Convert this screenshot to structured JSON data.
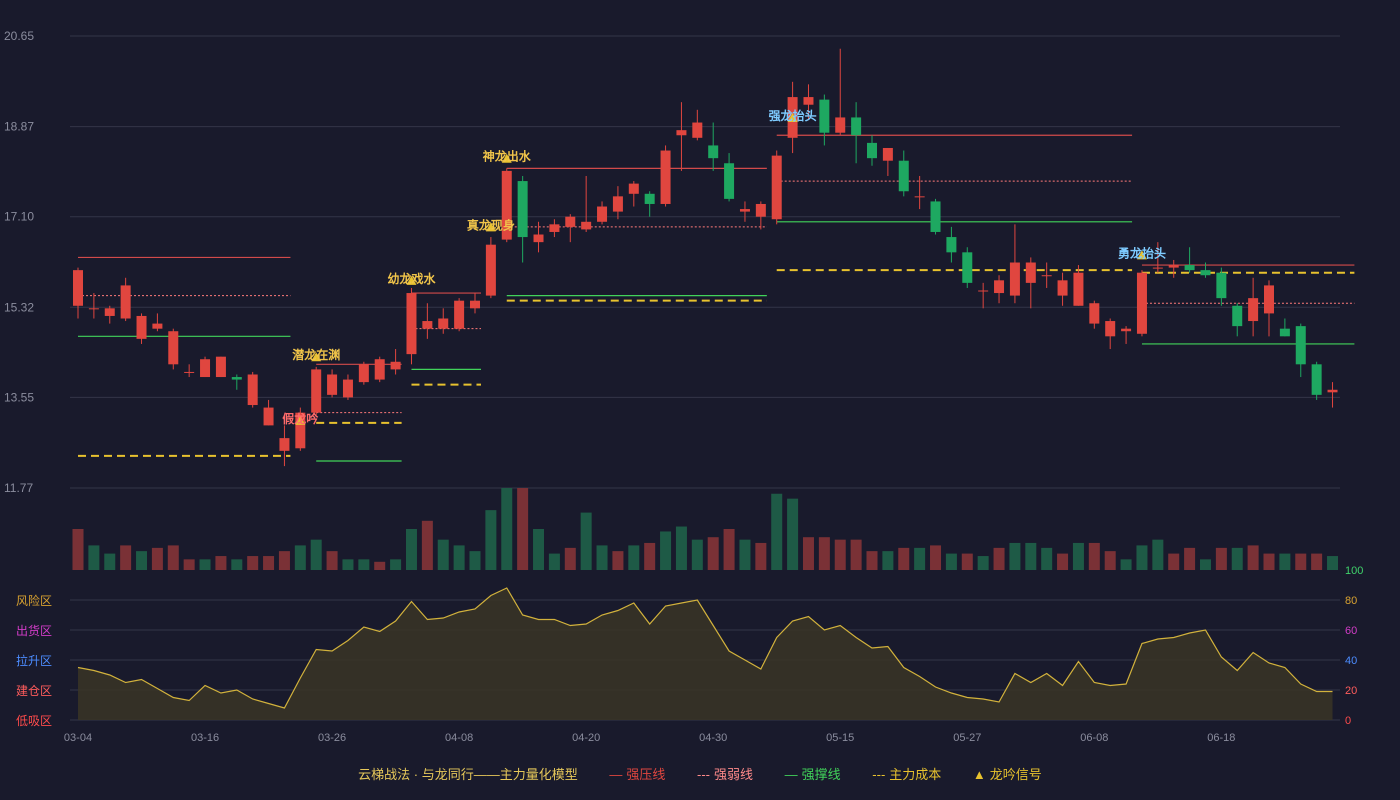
{
  "colors": {
    "background": "#191a2c",
    "grid": "#333548",
    "up": "#e0463f",
    "down": "#1ea861",
    "vol_up": "#7a3136",
    "vol_down": "#1e5a46",
    "oscillator": "#d2b23c",
    "strong_pressure": "#d24a4a",
    "strong_weak": "#ff7a7a",
    "strong_support": "#41d35a",
    "main_cost": "#e8c22e",
    "signal_yellow": "#f0c44a",
    "signal_blue": "#7ecbff",
    "signal_red": "#ff6b6b"
  },
  "chart_data": {
    "type": "candlestick",
    "price_axis": {
      "ticks": [
        "20.65",
        "18.87",
        "17.10",
        "15.32",
        "13.55",
        "11.77"
      ],
      "range": [
        11.77,
        20.65
      ]
    },
    "date_ticks": [
      {
        "i": 0,
        "label": "03-04"
      },
      {
        "i": 8,
        "label": "03-16"
      },
      {
        "i": 16,
        "label": "03-26"
      },
      {
        "i": 24,
        "label": "04-08"
      },
      {
        "i": 32,
        "label": "04-20"
      },
      {
        "i": 40,
        "label": "04-30"
      },
      {
        "i": 48,
        "label": "05-15"
      },
      {
        "i": 56,
        "label": "05-27"
      },
      {
        "i": 64,
        "label": "06-08"
      },
      {
        "i": 72,
        "label": "06-18"
      }
    ],
    "candles": [
      {
        "o": 15.35,
        "h": 16.1,
        "l": 15.1,
        "c": 16.05
      },
      {
        "o": 15.3,
        "h": 15.6,
        "l": 15.1,
        "c": 15.3
      },
      {
        "o": 15.15,
        "h": 15.35,
        "l": 15.0,
        "c": 15.3
      },
      {
        "o": 15.1,
        "h": 15.9,
        "l": 15.05,
        "c": 15.75
      },
      {
        "o": 14.7,
        "h": 15.2,
        "l": 14.6,
        "c": 15.15
      },
      {
        "o": 14.9,
        "h": 15.2,
        "l": 14.85,
        "c": 15.0
      },
      {
        "o": 14.2,
        "h": 14.9,
        "l": 14.1,
        "c": 14.85
      },
      {
        "o": 14.05,
        "h": 14.2,
        "l": 13.95,
        "c": 14.05
      },
      {
        "o": 13.95,
        "h": 14.35,
        "l": 13.95,
        "c": 14.3
      },
      {
        "o": 13.95,
        "h": 14.35,
        "l": 13.95,
        "c": 14.35
      },
      {
        "o": 13.95,
        "h": 14.0,
        "l": 13.7,
        "c": 13.9
      },
      {
        "o": 13.4,
        "h": 14.05,
        "l": 13.35,
        "c": 14.0
      },
      {
        "o": 13.0,
        "h": 13.5,
        "l": 13.0,
        "c": 13.35
      },
      {
        "o": 12.5,
        "h": 13.0,
        "l": 12.2,
        "c": 12.75
      },
      {
        "o": 12.55,
        "h": 13.35,
        "l": 12.5,
        "c": 13.25
      },
      {
        "o": 13.25,
        "h": 14.15,
        "l": 13.2,
        "c": 14.1
      },
      {
        "o": 13.6,
        "h": 14.1,
        "l": 13.55,
        "c": 14.0
      },
      {
        "o": 13.55,
        "h": 14.0,
        "l": 13.5,
        "c": 13.9
      },
      {
        "o": 13.85,
        "h": 14.25,
        "l": 13.8,
        "c": 14.2
      },
      {
        "o": 13.9,
        "h": 14.35,
        "l": 13.85,
        "c": 14.3
      },
      {
        "o": 14.1,
        "h": 14.5,
        "l": 14.0,
        "c": 14.25
      },
      {
        "o": 14.4,
        "h": 15.7,
        "l": 14.2,
        "c": 15.6
      },
      {
        "o": 14.9,
        "h": 15.4,
        "l": 14.7,
        "c": 15.05
      },
      {
        "o": 14.9,
        "h": 15.3,
        "l": 14.8,
        "c": 15.1
      },
      {
        "o": 14.9,
        "h": 15.5,
        "l": 14.85,
        "c": 15.45
      },
      {
        "o": 15.3,
        "h": 15.6,
        "l": 15.2,
        "c": 15.45
      },
      {
        "o": 15.55,
        "h": 16.7,
        "l": 15.5,
        "c": 16.55
      },
      {
        "o": 16.65,
        "h": 18.05,
        "l": 16.6,
        "c": 18.0
      },
      {
        "o": 17.8,
        "h": 17.9,
        "l": 16.2,
        "c": 16.7
      },
      {
        "o": 16.6,
        "h": 17.0,
        "l": 16.4,
        "c": 16.75
      },
      {
        "o": 16.8,
        "h": 17.05,
        "l": 16.7,
        "c": 16.95
      },
      {
        "o": 16.9,
        "h": 17.15,
        "l": 16.6,
        "c": 17.1
      },
      {
        "o": 16.85,
        "h": 17.9,
        "l": 16.8,
        "c": 17.0
      },
      {
        "o": 17.0,
        "h": 17.4,
        "l": 16.95,
        "c": 17.3
      },
      {
        "o": 17.2,
        "h": 17.7,
        "l": 17.05,
        "c": 17.5
      },
      {
        "o": 17.55,
        "h": 17.8,
        "l": 17.3,
        "c": 17.75
      },
      {
        "o": 17.55,
        "h": 17.6,
        "l": 17.1,
        "c": 17.35
      },
      {
        "o": 17.35,
        "h": 18.5,
        "l": 17.3,
        "c": 18.4
      },
      {
        "o": 18.7,
        "h": 19.35,
        "l": 18.0,
        "c": 18.8
      },
      {
        "o": 18.65,
        "h": 19.2,
        "l": 18.6,
        "c": 18.95
      },
      {
        "o": 18.5,
        "h": 18.95,
        "l": 18.0,
        "c": 18.25
      },
      {
        "o": 18.15,
        "h": 18.35,
        "l": 17.4,
        "c": 17.45
      },
      {
        "o": 17.2,
        "h": 17.4,
        "l": 17.0,
        "c": 17.25
      },
      {
        "o": 17.1,
        "h": 17.4,
        "l": 16.85,
        "c": 17.35
      },
      {
        "o": 17.05,
        "h": 18.4,
        "l": 16.95,
        "c": 18.3
      },
      {
        "o": 18.65,
        "h": 19.75,
        "l": 18.35,
        "c": 19.45
      },
      {
        "o": 19.3,
        "h": 19.7,
        "l": 19.0,
        "c": 19.45
      },
      {
        "o": 19.4,
        "h": 19.5,
        "l": 18.5,
        "c": 18.75
      },
      {
        "o": 18.75,
        "h": 20.4,
        "l": 18.7,
        "c": 19.05
      },
      {
        "o": 19.05,
        "h": 19.35,
        "l": 18.15,
        "c": 18.7
      },
      {
        "o": 18.55,
        "h": 18.7,
        "l": 18.1,
        "c": 18.25
      },
      {
        "o": 18.2,
        "h": 18.45,
        "l": 17.9,
        "c": 18.45
      },
      {
        "o": 18.2,
        "h": 18.4,
        "l": 17.5,
        "c": 17.6
      },
      {
        "o": 17.5,
        "h": 17.9,
        "l": 17.25,
        "c": 17.5
      },
      {
        "o": 17.4,
        "h": 17.45,
        "l": 16.75,
        "c": 16.8
      },
      {
        "o": 16.7,
        "h": 16.9,
        "l": 16.2,
        "c": 16.4
      },
      {
        "o": 16.4,
        "h": 16.5,
        "l": 15.7,
        "c": 15.8
      },
      {
        "o": 15.65,
        "h": 15.8,
        "l": 15.3,
        "c": 15.65
      },
      {
        "o": 15.6,
        "h": 15.95,
        "l": 15.4,
        "c": 15.85
      },
      {
        "o": 15.55,
        "h": 16.95,
        "l": 15.4,
        "c": 16.2
      },
      {
        "o": 15.8,
        "h": 16.3,
        "l": 15.3,
        "c": 16.2
      },
      {
        "o": 15.95,
        "h": 16.2,
        "l": 15.7,
        "c": 15.95
      },
      {
        "o": 15.55,
        "h": 16.0,
        "l": 15.35,
        "c": 15.85
      },
      {
        "o": 15.35,
        "h": 16.15,
        "l": 15.35,
        "c": 16.0
      },
      {
        "o": 15.0,
        "h": 15.45,
        "l": 14.9,
        "c": 15.4
      },
      {
        "o": 14.75,
        "h": 15.1,
        "l": 14.5,
        "c": 15.05
      },
      {
        "o": 14.85,
        "h": 14.95,
        "l": 14.6,
        "c": 14.9
      },
      {
        "o": 14.8,
        "h": 16.05,
        "l": 14.75,
        "c": 16.0
      },
      {
        "o": 16.1,
        "h": 16.6,
        "l": 16.0,
        "c": 16.1
      },
      {
        "o": 16.1,
        "h": 16.25,
        "l": 15.9,
        "c": 16.15
      },
      {
        "o": 16.15,
        "h": 16.5,
        "l": 16.0,
        "c": 16.05
      },
      {
        "o": 16.05,
        "h": 16.2,
        "l": 15.9,
        "c": 15.95
      },
      {
        "o": 16.0,
        "h": 16.1,
        "l": 15.35,
        "c": 15.5
      },
      {
        "o": 15.35,
        "h": 15.4,
        "l": 14.75,
        "c": 14.95
      },
      {
        "o": 15.05,
        "h": 15.9,
        "l": 14.75,
        "c": 15.5
      },
      {
        "o": 15.2,
        "h": 15.85,
        "l": 14.75,
        "c": 15.75
      },
      {
        "o": 14.9,
        "h": 15.1,
        "l": 14.75,
        "c": 14.75
      },
      {
        "o": 14.95,
        "h": 15.0,
        "l": 13.95,
        "c": 14.2
      },
      {
        "o": 14.2,
        "h": 14.25,
        "l": 13.5,
        "c": 13.6
      },
      {
        "o": 13.65,
        "h": 13.85,
        "l": 13.35,
        "c": 13.7
      }
    ],
    "volume": [
      {
        "v": 0.5,
        "up": true
      },
      {
        "v": 0.3,
        "up": false
      },
      {
        "v": 0.2,
        "up": false
      },
      {
        "v": 0.3,
        "up": true
      },
      {
        "v": 0.23,
        "up": false
      },
      {
        "v": 0.27,
        "up": true
      },
      {
        "v": 0.3,
        "up": true
      },
      {
        "v": 0.13,
        "up": true
      },
      {
        "v": 0.13,
        "up": false
      },
      {
        "v": 0.17,
        "up": true
      },
      {
        "v": 0.13,
        "up": false
      },
      {
        "v": 0.17,
        "up": true
      },
      {
        "v": 0.17,
        "up": true
      },
      {
        "v": 0.23,
        "up": true
      },
      {
        "v": 0.3,
        "up": false
      },
      {
        "v": 0.37,
        "up": false
      },
      {
        "v": 0.23,
        "up": true
      },
      {
        "v": 0.13,
        "up": false
      },
      {
        "v": 0.13,
        "up": false
      },
      {
        "v": 0.1,
        "up": true
      },
      {
        "v": 0.13,
        "up": false
      },
      {
        "v": 0.5,
        "up": false
      },
      {
        "v": 0.6,
        "up": true
      },
      {
        "v": 0.37,
        "up": false
      },
      {
        "v": 0.3,
        "up": false
      },
      {
        "v": 0.23,
        "up": false
      },
      {
        "v": 0.73,
        "up": false
      },
      {
        "v": 1.0,
        "up": false
      },
      {
        "v": 1.0,
        "up": true
      },
      {
        "v": 0.5,
        "up": false
      },
      {
        "v": 0.2,
        "up": false
      },
      {
        "v": 0.27,
        "up": true
      },
      {
        "v": 0.7,
        "up": false
      },
      {
        "v": 0.3,
        "up": false
      },
      {
        "v": 0.23,
        "up": true
      },
      {
        "v": 0.3,
        "up": false
      },
      {
        "v": 0.33,
        "up": true
      },
      {
        "v": 0.47,
        "up": false
      },
      {
        "v": 0.53,
        "up": false
      },
      {
        "v": 0.37,
        "up": false
      },
      {
        "v": 0.4,
        "up": true
      },
      {
        "v": 0.5,
        "up": true
      },
      {
        "v": 0.37,
        "up": false
      },
      {
        "v": 0.33,
        "up": true
      },
      {
        "v": 0.93,
        "up": false
      },
      {
        "v": 0.87,
        "up": false
      },
      {
        "v": 0.4,
        "up": true
      },
      {
        "v": 0.4,
        "up": true
      },
      {
        "v": 0.37,
        "up": true
      },
      {
        "v": 0.37,
        "up": true
      },
      {
        "v": 0.23,
        "up": true
      },
      {
        "v": 0.23,
        "up": false
      },
      {
        "v": 0.27,
        "up": true
      },
      {
        "v": 0.27,
        "up": false
      },
      {
        "v": 0.3,
        "up": true
      },
      {
        "v": 0.2,
        "up": false
      },
      {
        "v": 0.2,
        "up": true
      },
      {
        "v": 0.17,
        "up": false
      },
      {
        "v": 0.27,
        "up": true
      },
      {
        "v": 0.33,
        "up": false
      },
      {
        "v": 0.33,
        "up": false
      },
      {
        "v": 0.27,
        "up": false
      },
      {
        "v": 0.2,
        "up": true
      },
      {
        "v": 0.33,
        "up": false
      },
      {
        "v": 0.33,
        "up": true
      },
      {
        "v": 0.23,
        "up": true
      },
      {
        "v": 0.13,
        "up": false
      },
      {
        "v": 0.3,
        "up": false
      },
      {
        "v": 0.37,
        "up": false
      },
      {
        "v": 0.2,
        "up": true
      },
      {
        "v": 0.27,
        "up": true
      },
      {
        "v": 0.13,
        "up": false
      },
      {
        "v": 0.27,
        "up": true
      },
      {
        "v": 0.27,
        "up": false
      },
      {
        "v": 0.3,
        "up": true
      },
      {
        "v": 0.2,
        "up": true
      },
      {
        "v": 0.2,
        "up": false
      },
      {
        "v": 0.2,
        "up": true
      },
      {
        "v": 0.2,
        "up": true
      },
      {
        "v": 0.17,
        "up": false
      }
    ],
    "oscillator": {
      "axis_ticks": [
        "100",
        "80",
        "60",
        "40",
        "20",
        "0"
      ],
      "zone_labels": [
        "风险区",
        "出货区",
        "拉升区",
        "建仓区",
        "低吸区"
      ],
      "values": [
        35,
        33,
        30,
        25,
        27,
        21,
        15,
        13,
        23,
        18,
        20,
        14,
        11,
        8,
        28,
        47,
        46,
        53,
        62,
        59,
        66,
        79,
        67,
        68,
        72,
        74,
        83,
        88,
        70,
        67,
        67,
        63,
        64,
        70,
        73,
        78,
        64,
        76,
        78,
        80,
        63,
        46,
        40,
        34,
        55,
        66,
        69,
        60,
        63,
        55,
        48,
        49,
        35,
        29,
        22,
        18,
        15,
        14,
        12,
        31,
        25,
        31,
        23,
        39,
        25,
        23,
        24,
        51,
        54,
        55,
        58,
        60,
        42,
        33,
        45,
        38,
        35,
        24,
        19,
        19
      ]
    },
    "levels": [
      {
        "type": "pressure",
        "x0": 0,
        "x1": 13,
        "y": 16.3
      },
      {
        "type": "weak",
        "x0": 0,
        "x1": 13,
        "y": 15.55
      },
      {
        "type": "support",
        "x0": 0,
        "x1": 13,
        "y": 14.75
      },
      {
        "type": "cost",
        "x0": 0,
        "x1": 13,
        "y": 12.4
      },
      {
        "type": "pressure",
        "x0": 15,
        "x1": 20,
        "y": 14.2
      },
      {
        "type": "weak",
        "x0": 15,
        "x1": 20,
        "y": 13.25
      },
      {
        "type": "cost",
        "x0": 15,
        "x1": 20,
        "y": 13.05
      },
      {
        "type": "support",
        "x0": 15,
        "x1": 20,
        "y": 12.3
      },
      {
        "type": "pressure",
        "x0": 21,
        "x1": 25,
        "y": 15.6
      },
      {
        "type": "weak",
        "x0": 21,
        "x1": 25,
        "y": 14.9
      },
      {
        "type": "support",
        "x0": 21,
        "x1": 25,
        "y": 14.1
      },
      {
        "type": "cost",
        "x0": 21,
        "x1": 25,
        "y": 13.8
      },
      {
        "type": "pressure",
        "x0": 27,
        "x1": 43,
        "y": 18.05
      },
      {
        "type": "weak",
        "x0": 27,
        "x1": 43,
        "y": 16.9
      },
      {
        "type": "support",
        "x0": 27,
        "x1": 43,
        "y": 15.55
      },
      {
        "type": "cost",
        "x0": 27,
        "x1": 43,
        "y": 15.45
      },
      {
        "type": "pressure",
        "x0": 44,
        "x1": 66,
        "y": 18.7
      },
      {
        "type": "weak",
        "x0": 44,
        "x1": 66,
        "y": 17.8
      },
      {
        "type": "support",
        "x0": 44,
        "x1": 66,
        "y": 17.0
      },
      {
        "type": "cost",
        "x0": 44,
        "x1": 66,
        "y": 16.05
      },
      {
        "type": "pressure",
        "x0": 67,
        "x1": 80,
        "y": 16.15
      },
      {
        "type": "weak",
        "x0": 67,
        "x1": 80,
        "y": 15.4
      },
      {
        "type": "support",
        "x0": 67,
        "x1": 80,
        "y": 14.6
      },
      {
        "type": "cost",
        "x0": 67,
        "x1": 80,
        "y": 16.0
      }
    ],
    "signals": [
      {
        "i": 14,
        "label": "假龙吟",
        "price": 13.05,
        "color": "red"
      },
      {
        "i": 15,
        "label": "潜龙在渊",
        "price": 14.3,
        "color": "yellow"
      },
      {
        "i": 21,
        "label": "幼龙戏水",
        "price": 15.8,
        "color": "yellow"
      },
      {
        "i": 26,
        "label": "真龙现身",
        "price": 16.85,
        "color": "yellow"
      },
      {
        "i": 27,
        "label": "神龙出水",
        "price": 18.2,
        "color": "yellow"
      },
      {
        "i": 45,
        "label": "强龙抬头",
        "price": 19.0,
        "color": "blue"
      },
      {
        "i": 67,
        "label": "勇龙抬头",
        "price": 16.3,
        "color": "blue"
      }
    ]
  },
  "legend": {
    "title": "云梯战法 · 与龙同行——主力量化模型",
    "items": [
      {
        "label": "强压线",
        "color": "#e0463f",
        "symbol": "—"
      },
      {
        "label": "强弱线",
        "color": "#ff8a8a",
        "symbol": "---"
      },
      {
        "label": "强撑线",
        "color": "#41d35a",
        "symbol": "—"
      },
      {
        "label": "主力成本",
        "color": "#e8c22e",
        "symbol": "---"
      },
      {
        "label": "龙吟信号",
        "color": "#e8c22e",
        "symbol": "▲"
      }
    ]
  }
}
